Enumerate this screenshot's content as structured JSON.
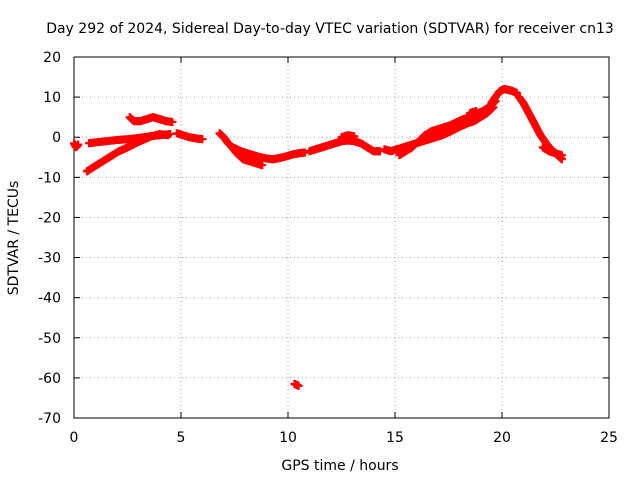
{
  "chart_data": {
    "type": "scatter",
    "title": "Day 292 of 2024, Sidereal Day-to-day VTEC variation (SDTVAR) for receiver cn13",
    "xlabel": "GPS time / hours",
    "ylabel": "SDTVAR / TECUs",
    "xlim": [
      0,
      25
    ],
    "ylim": [
      -70,
      20
    ],
    "xticks": [
      0,
      5,
      10,
      15,
      20,
      25
    ],
    "yticks": [
      20,
      10,
      0,
      -10,
      -20,
      -30,
      -40,
      -50,
      -60,
      -70
    ],
    "grid": true,
    "marker": "+",
    "color": "#ff0000",
    "series": [
      {
        "name": "s1",
        "points": [
          [
            0.0,
            -1.5
          ],
          [
            0.1,
            -2.5
          ],
          [
            0.2,
            -1.8
          ]
        ]
      },
      {
        "name": "s2",
        "points": [
          [
            0.7,
            -1.5
          ],
          [
            1.0,
            -1.3
          ],
          [
            1.5,
            -1.0
          ],
          [
            2.0,
            -0.7
          ],
          [
            2.5,
            -0.5
          ],
          [
            3.0,
            -0.2
          ],
          [
            3.5,
            0.2
          ],
          [
            4.0,
            0.5
          ],
          [
            4.5,
            0.8
          ]
        ]
      },
      {
        "name": "s3",
        "points": [
          [
            0.6,
            -8.5
          ],
          [
            0.9,
            -7.5
          ],
          [
            1.2,
            -6.5
          ],
          [
            1.5,
            -5.5
          ],
          [
            1.8,
            -4.5
          ],
          [
            2.1,
            -3.5
          ],
          [
            2.4,
            -2.8
          ],
          [
            2.7,
            -2.0
          ],
          [
            3.0,
            -1.2
          ],
          [
            3.3,
            -0.5
          ],
          [
            3.6,
            0.2
          ],
          [
            4.0,
            0.8
          ],
          [
            4.4,
            0.5
          ]
        ]
      },
      {
        "name": "s4",
        "points": [
          [
            2.6,
            5.0
          ],
          [
            2.8,
            4.0
          ],
          [
            3.1,
            4.0
          ],
          [
            3.4,
            4.5
          ],
          [
            3.7,
            5.0
          ],
          [
            4.0,
            4.5
          ],
          [
            4.3,
            4.0
          ],
          [
            4.6,
            3.8
          ]
        ]
      },
      {
        "name": "s5",
        "points": [
          [
            4.8,
            1.0
          ],
          [
            5.1,
            0.5
          ],
          [
            5.4,
            0.0
          ],
          [
            5.7,
            -0.3
          ],
          [
            6.0,
            -0.5
          ]
        ]
      },
      {
        "name": "s6",
        "points": [
          [
            6.8,
            1.0
          ],
          [
            7.0,
            0.0
          ],
          [
            7.2,
            -1.5
          ],
          [
            7.4,
            -2.5
          ],
          [
            7.6,
            -3.0
          ],
          [
            7.8,
            -3.5
          ],
          [
            8.1,
            -4.0
          ],
          [
            8.4,
            -4.5
          ],
          [
            8.7,
            -5.0
          ],
          [
            9.0,
            -5.3
          ],
          [
            9.3,
            -5.5
          ],
          [
            9.6,
            -5.2
          ],
          [
            9.9,
            -4.8
          ],
          [
            10.2,
            -4.3
          ],
          [
            10.5,
            -4.0
          ],
          [
            10.8,
            -3.8
          ]
        ]
      },
      {
        "name": "s7",
        "points": [
          [
            7.3,
            -2.0
          ],
          [
            7.6,
            -4.0
          ],
          [
            7.9,
            -5.5
          ],
          [
            8.2,
            -6.0
          ],
          [
            8.5,
            -6.5
          ],
          [
            8.8,
            -7.0
          ]
        ]
      },
      {
        "name": "s8",
        "points": [
          [
            11.0,
            -3.5
          ],
          [
            11.3,
            -3.0
          ],
          [
            11.6,
            -2.5
          ],
          [
            11.9,
            -2.0
          ],
          [
            12.2,
            -1.5
          ],
          [
            12.5,
            -1.0
          ],
          [
            12.8,
            -0.8
          ],
          [
            13.1,
            -1.0
          ],
          [
            13.4,
            -1.5
          ],
          [
            13.7,
            -2.5
          ],
          [
            14.0,
            -3.5
          ],
          [
            14.3,
            -3.5
          ]
        ]
      },
      {
        "name": "s9",
        "points": [
          [
            12.5,
            0.0
          ],
          [
            12.8,
            0.5
          ],
          [
            13.1,
            0.2
          ]
        ]
      },
      {
        "name": "s10",
        "points": [
          [
            14.5,
            -3.0
          ],
          [
            14.8,
            -3.5
          ],
          [
            15.1,
            -3.0
          ],
          [
            15.4,
            -2.5
          ],
          [
            15.7,
            -2.0
          ],
          [
            16.0,
            -1.5
          ],
          [
            16.3,
            -1.0
          ],
          [
            16.6,
            -0.5
          ],
          [
            16.9,
            0.0
          ],
          [
            17.2,
            0.5
          ],
          [
            17.5,
            1.2
          ],
          [
            17.8,
            2.0
          ],
          [
            18.1,
            2.8
          ],
          [
            18.4,
            3.5
          ],
          [
            18.7,
            4.0
          ],
          [
            19.0,
            5.0
          ],
          [
            19.3,
            6.0
          ],
          [
            19.6,
            7.5
          ]
        ]
      },
      {
        "name": "s11",
        "points": [
          [
            15.2,
            -4.5
          ],
          [
            15.5,
            -3.5
          ],
          [
            15.8,
            -2.5
          ],
          [
            16.1,
            -1.0
          ],
          [
            16.4,
            0.5
          ],
          [
            16.7,
            1.5
          ],
          [
            17.0,
            2.0
          ],
          [
            17.3,
            2.5
          ],
          [
            17.6,
            3.0
          ],
          [
            17.9,
            3.8
          ],
          [
            18.2,
            4.5
          ],
          [
            18.5,
            5.0
          ],
          [
            18.8,
            5.8
          ],
          [
            19.1,
            6.5
          ],
          [
            19.4,
            7.5
          ],
          [
            19.7,
            9.0
          ]
        ]
      },
      {
        "name": "s12",
        "points": [
          [
            18.5,
            6.0
          ],
          [
            18.8,
            6.5
          ]
        ]
      },
      {
        "name": "s13",
        "points": [
          [
            19.5,
            8.5
          ],
          [
            19.7,
            10.0
          ],
          [
            19.9,
            11.5
          ],
          [
            20.1,
            12.0
          ],
          [
            20.3,
            11.8
          ],
          [
            20.5,
            11.5
          ],
          [
            20.7,
            11.0
          ]
        ]
      },
      {
        "name": "s14",
        "points": [
          [
            20.8,
            10.0
          ],
          [
            21.0,
            8.5
          ],
          [
            21.2,
            6.5
          ],
          [
            21.4,
            4.5
          ],
          [
            21.6,
            2.5
          ],
          [
            21.8,
            0.5
          ],
          [
            22.0,
            -1.0
          ],
          [
            22.2,
            -2.5
          ],
          [
            22.4,
            -3.5
          ],
          [
            22.6,
            -4.5
          ],
          [
            22.8,
            -5.5
          ]
        ]
      },
      {
        "name": "s15",
        "points": [
          [
            21.9,
            -2.5
          ],
          [
            22.2,
            -3.5
          ],
          [
            22.5,
            -4.0
          ],
          [
            22.8,
            -4.5
          ]
        ]
      },
      {
        "name": "s16",
        "points": [
          [
            10.3,
            -61.5
          ],
          [
            10.5,
            -62.0
          ]
        ]
      }
    ]
  }
}
